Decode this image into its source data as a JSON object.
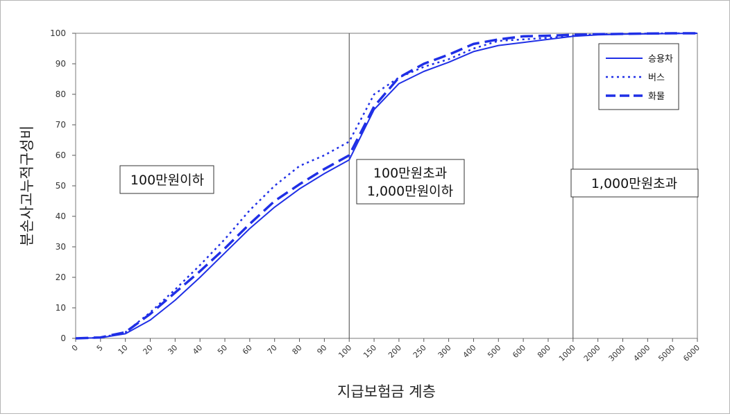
{
  "chart_data": {
    "type": "line",
    "ylabel": "분손사고누적구성비",
    "xlabel": "지급보험금 계층",
    "ylim": [
      0,
      100
    ],
    "yticks": [
      0,
      10,
      20,
      30,
      40,
      50,
      60,
      70,
      80,
      90,
      100
    ],
    "categories": [
      "0",
      "5",
      "10",
      "20",
      "30",
      "40",
      "50",
      "60",
      "70",
      "80",
      "90",
      "100",
      "150",
      "200",
      "250",
      "300",
      "400",
      "500",
      "600",
      "800",
      "1000",
      "2000",
      "3000",
      "4000",
      "5000",
      "6000"
    ],
    "series": [
      {
        "name": "승용차",
        "style": "solid",
        "values": [
          0,
          0.2,
          1.5,
          6,
          12.5,
          20,
          28,
          36,
          43,
          49,
          54,
          58.5,
          75,
          83.5,
          87.5,
          90.5,
          94,
          96,
          97,
          98,
          99,
          99.5,
          99.7,
          99.8,
          99.9,
          100
        ]
      },
      {
        "name": "버스",
        "style": "dotted",
        "values": [
          0,
          0.2,
          2,
          8.5,
          16,
          24,
          32.5,
          42,
          50,
          56.5,
          60,
          64.5,
          80,
          85.5,
          89,
          91.5,
          95,
          97.5,
          98,
          98.5,
          99.2,
          99.7,
          99.8,
          99.9,
          100,
          100
        ]
      },
      {
        "name": "화물",
        "style": "dashed",
        "values": [
          0,
          0.3,
          2,
          8,
          15,
          22,
          29.5,
          37.5,
          45,
          50.5,
          55.5,
          60,
          76,
          85.5,
          90,
          93,
          96.5,
          98,
          99,
          99.2,
          99.5,
          99.7,
          99.8,
          99.9,
          100,
          100
        ]
      }
    ],
    "region_lines_at": [
      "100",
      "1000"
    ],
    "annotations": [
      {
        "text": "100만원이하"
      },
      {
        "text": "100만원초과\n1,000만원이하"
      },
      {
        "text": "1,000만원초과"
      }
    ],
    "grid": false,
    "legend_position": "top-right",
    "colors": {
      "series": "#1f2fe6",
      "axis": "#555555",
      "plot_border": "#7a7a7a"
    }
  }
}
